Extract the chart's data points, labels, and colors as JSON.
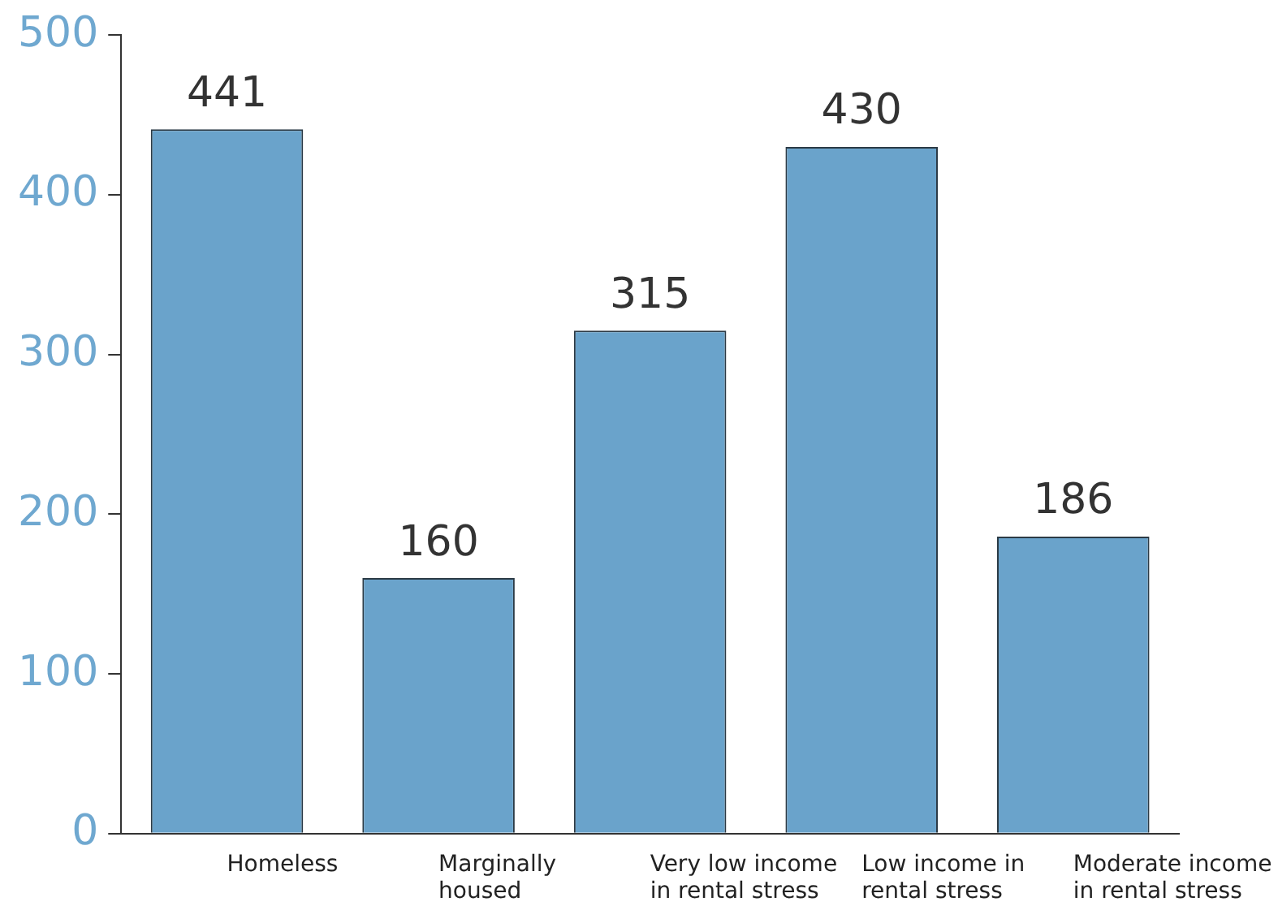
{
  "chart_data": {
    "type": "bar",
    "categories": [
      "Homeless",
      "Marginally housed",
      "Very low income in rental stress",
      "Low income in rental stress",
      "Moderate income in rental stress"
    ],
    "values": [
      441,
      160,
      315,
      430,
      186
    ],
    "color": "#6aa3cb",
    "ylim": [
      0,
      500
    ],
    "yticks": [
      0,
      100,
      200,
      300,
      400,
      500
    ],
    "grid": false,
    "legend": false,
    "data_labels": true
  }
}
